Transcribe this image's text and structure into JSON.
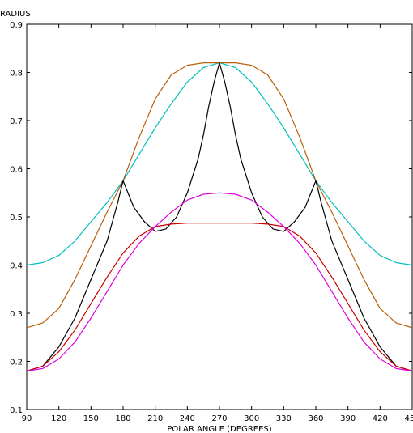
{
  "chart_data": {
    "type": "line",
    "title": "",
    "xlabel": "POLAR ANGLE (DEGREES)",
    "ylabel": "RADIUS",
    "xlim": [
      90,
      450
    ],
    "ylim": [
      0.1,
      0.9
    ],
    "xticks": [
      90,
      120,
      150,
      180,
      210,
      240,
      270,
      300,
      330,
      360,
      390,
      420,
      450
    ],
    "yticks": [
      0.1,
      0.2,
      0.3,
      0.4,
      0.5,
      0.6,
      0.7,
      0.8,
      0.9
    ],
    "grid": false,
    "legend": "none",
    "series": [
      {
        "color": "#00BFBF",
        "x": [
          90,
          105,
          120,
          135,
          150,
          165,
          180,
          195,
          210,
          225,
          240,
          255,
          270,
          285,
          300,
          315,
          330,
          345,
          360,
          375,
          390,
          405,
          420,
          435,
          450
        ],
        "y": [
          0.4,
          0.405,
          0.42,
          0.45,
          0.49,
          0.53,
          0.575,
          0.63,
          0.685,
          0.735,
          0.78,
          0.81,
          0.82,
          0.81,
          0.78,
          0.735,
          0.685,
          0.63,
          0.575,
          0.53,
          0.49,
          0.45,
          0.42,
          0.405,
          0.4
        ]
      },
      {
        "color": "#B8600B",
        "x": [
          90,
          105,
          120,
          135,
          150,
          165,
          180,
          195,
          210,
          225,
          240,
          255,
          270,
          285,
          300,
          315,
          330,
          345,
          360,
          375,
          390,
          405,
          420,
          435,
          450
        ],
        "y": [
          0.27,
          0.28,
          0.31,
          0.37,
          0.44,
          0.51,
          0.575,
          0.665,
          0.745,
          0.795,
          0.815,
          0.82,
          0.82,
          0.82,
          0.815,
          0.795,
          0.745,
          0.665,
          0.575,
          0.51,
          0.44,
          0.37,
          0.31,
          0.28,
          0.27
        ]
      },
      {
        "color": "#000000",
        "x": [
          90,
          105,
          120,
          135,
          150,
          165,
          170,
          175,
          180,
          190,
          200,
          210,
          220,
          230,
          240,
          250,
          255,
          260,
          265,
          270,
          275,
          280,
          285,
          290,
          300,
          310,
          320,
          330,
          340,
          350,
          360,
          365,
          370,
          375,
          390,
          405,
          420,
          435,
          450
        ],
        "y": [
          0.18,
          0.19,
          0.23,
          0.29,
          0.37,
          0.45,
          0.49,
          0.53,
          0.575,
          0.52,
          0.49,
          0.47,
          0.475,
          0.5,
          0.55,
          0.62,
          0.67,
          0.73,
          0.78,
          0.82,
          0.78,
          0.73,
          0.67,
          0.62,
          0.55,
          0.5,
          0.475,
          0.47,
          0.49,
          0.52,
          0.575,
          0.53,
          0.49,
          0.45,
          0.37,
          0.29,
          0.23,
          0.19,
          0.18
        ]
      },
      {
        "color": "#CC0000",
        "x": [
          90,
          105,
          120,
          135,
          150,
          165,
          180,
          195,
          210,
          225,
          240,
          255,
          270,
          285,
          300,
          315,
          330,
          345,
          360,
          375,
          390,
          405,
          420,
          435,
          450
        ],
        "y": [
          0.18,
          0.19,
          0.22,
          0.265,
          0.32,
          0.375,
          0.425,
          0.46,
          0.48,
          0.485,
          0.487,
          0.487,
          0.487,
          0.487,
          0.487,
          0.485,
          0.48,
          0.46,
          0.425,
          0.375,
          0.32,
          0.265,
          0.22,
          0.19,
          0.18
        ]
      },
      {
        "color": "#E000E0",
        "x": [
          90,
          105,
          120,
          135,
          150,
          165,
          180,
          195,
          210,
          225,
          240,
          255,
          270,
          285,
          300,
          315,
          330,
          345,
          360,
          375,
          390,
          405,
          420,
          435,
          450
        ],
        "y": [
          0.18,
          0.185,
          0.205,
          0.24,
          0.29,
          0.345,
          0.4,
          0.445,
          0.48,
          0.51,
          0.535,
          0.547,
          0.55,
          0.547,
          0.535,
          0.51,
          0.48,
          0.445,
          0.4,
          0.345,
          0.29,
          0.24,
          0.205,
          0.185,
          0.18
        ]
      }
    ]
  }
}
